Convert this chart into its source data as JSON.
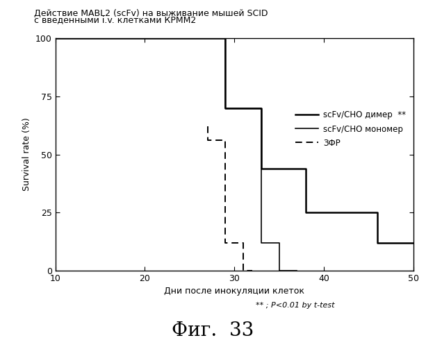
{
  "title_line1": "Действие MABL2 (scFv) на выживание мышей SCID",
  "title_line2": "с введенными i.v. клетками КРММ2",
  "xlabel": "Дни после инокуляции клеток",
  "ylabel": "Survival rate (%)",
  "xlim": [
    10,
    50
  ],
  "ylim": [
    0,
    100
  ],
  "xticks": [
    10,
    20,
    30,
    40,
    50
  ],
  "yticks": [
    0,
    25,
    50,
    75,
    100
  ],
  "fig_caption": "Фиг.  33",
  "footnote": "** ; P<0.01 by t-test",
  "legend_entries": [
    {
      "label": "scFv/CHO димер  **",
      "linestyle": "solid",
      "linewidth": 1.8
    },
    {
      "label": "scFv/CHO мономер",
      "linestyle": "solid",
      "linewidth": 1.2
    },
    {
      "label": "ЗФР",
      "linestyle": "dashed",
      "linewidth": 1.4
    }
  ],
  "dimer_x": [
    10,
    29,
    29,
    33,
    33,
    38,
    38,
    46,
    46,
    50
  ],
  "dimer_y": [
    100,
    100,
    70,
    70,
    44,
    44,
    25,
    25,
    12,
    12
  ],
  "monomer_x": [
    10,
    29,
    29,
    33,
    33,
    35,
    35,
    37
  ],
  "monomer_y": [
    100,
    100,
    70,
    70,
    12,
    12,
    0,
    0
  ],
  "zfr_x": [
    27,
    27,
    29,
    29,
    31,
    31,
    32
  ],
  "zfr_y": [
    62,
    56,
    56,
    12,
    12,
    0,
    0
  ],
  "color": "#000000",
  "background_color": "#ffffff"
}
